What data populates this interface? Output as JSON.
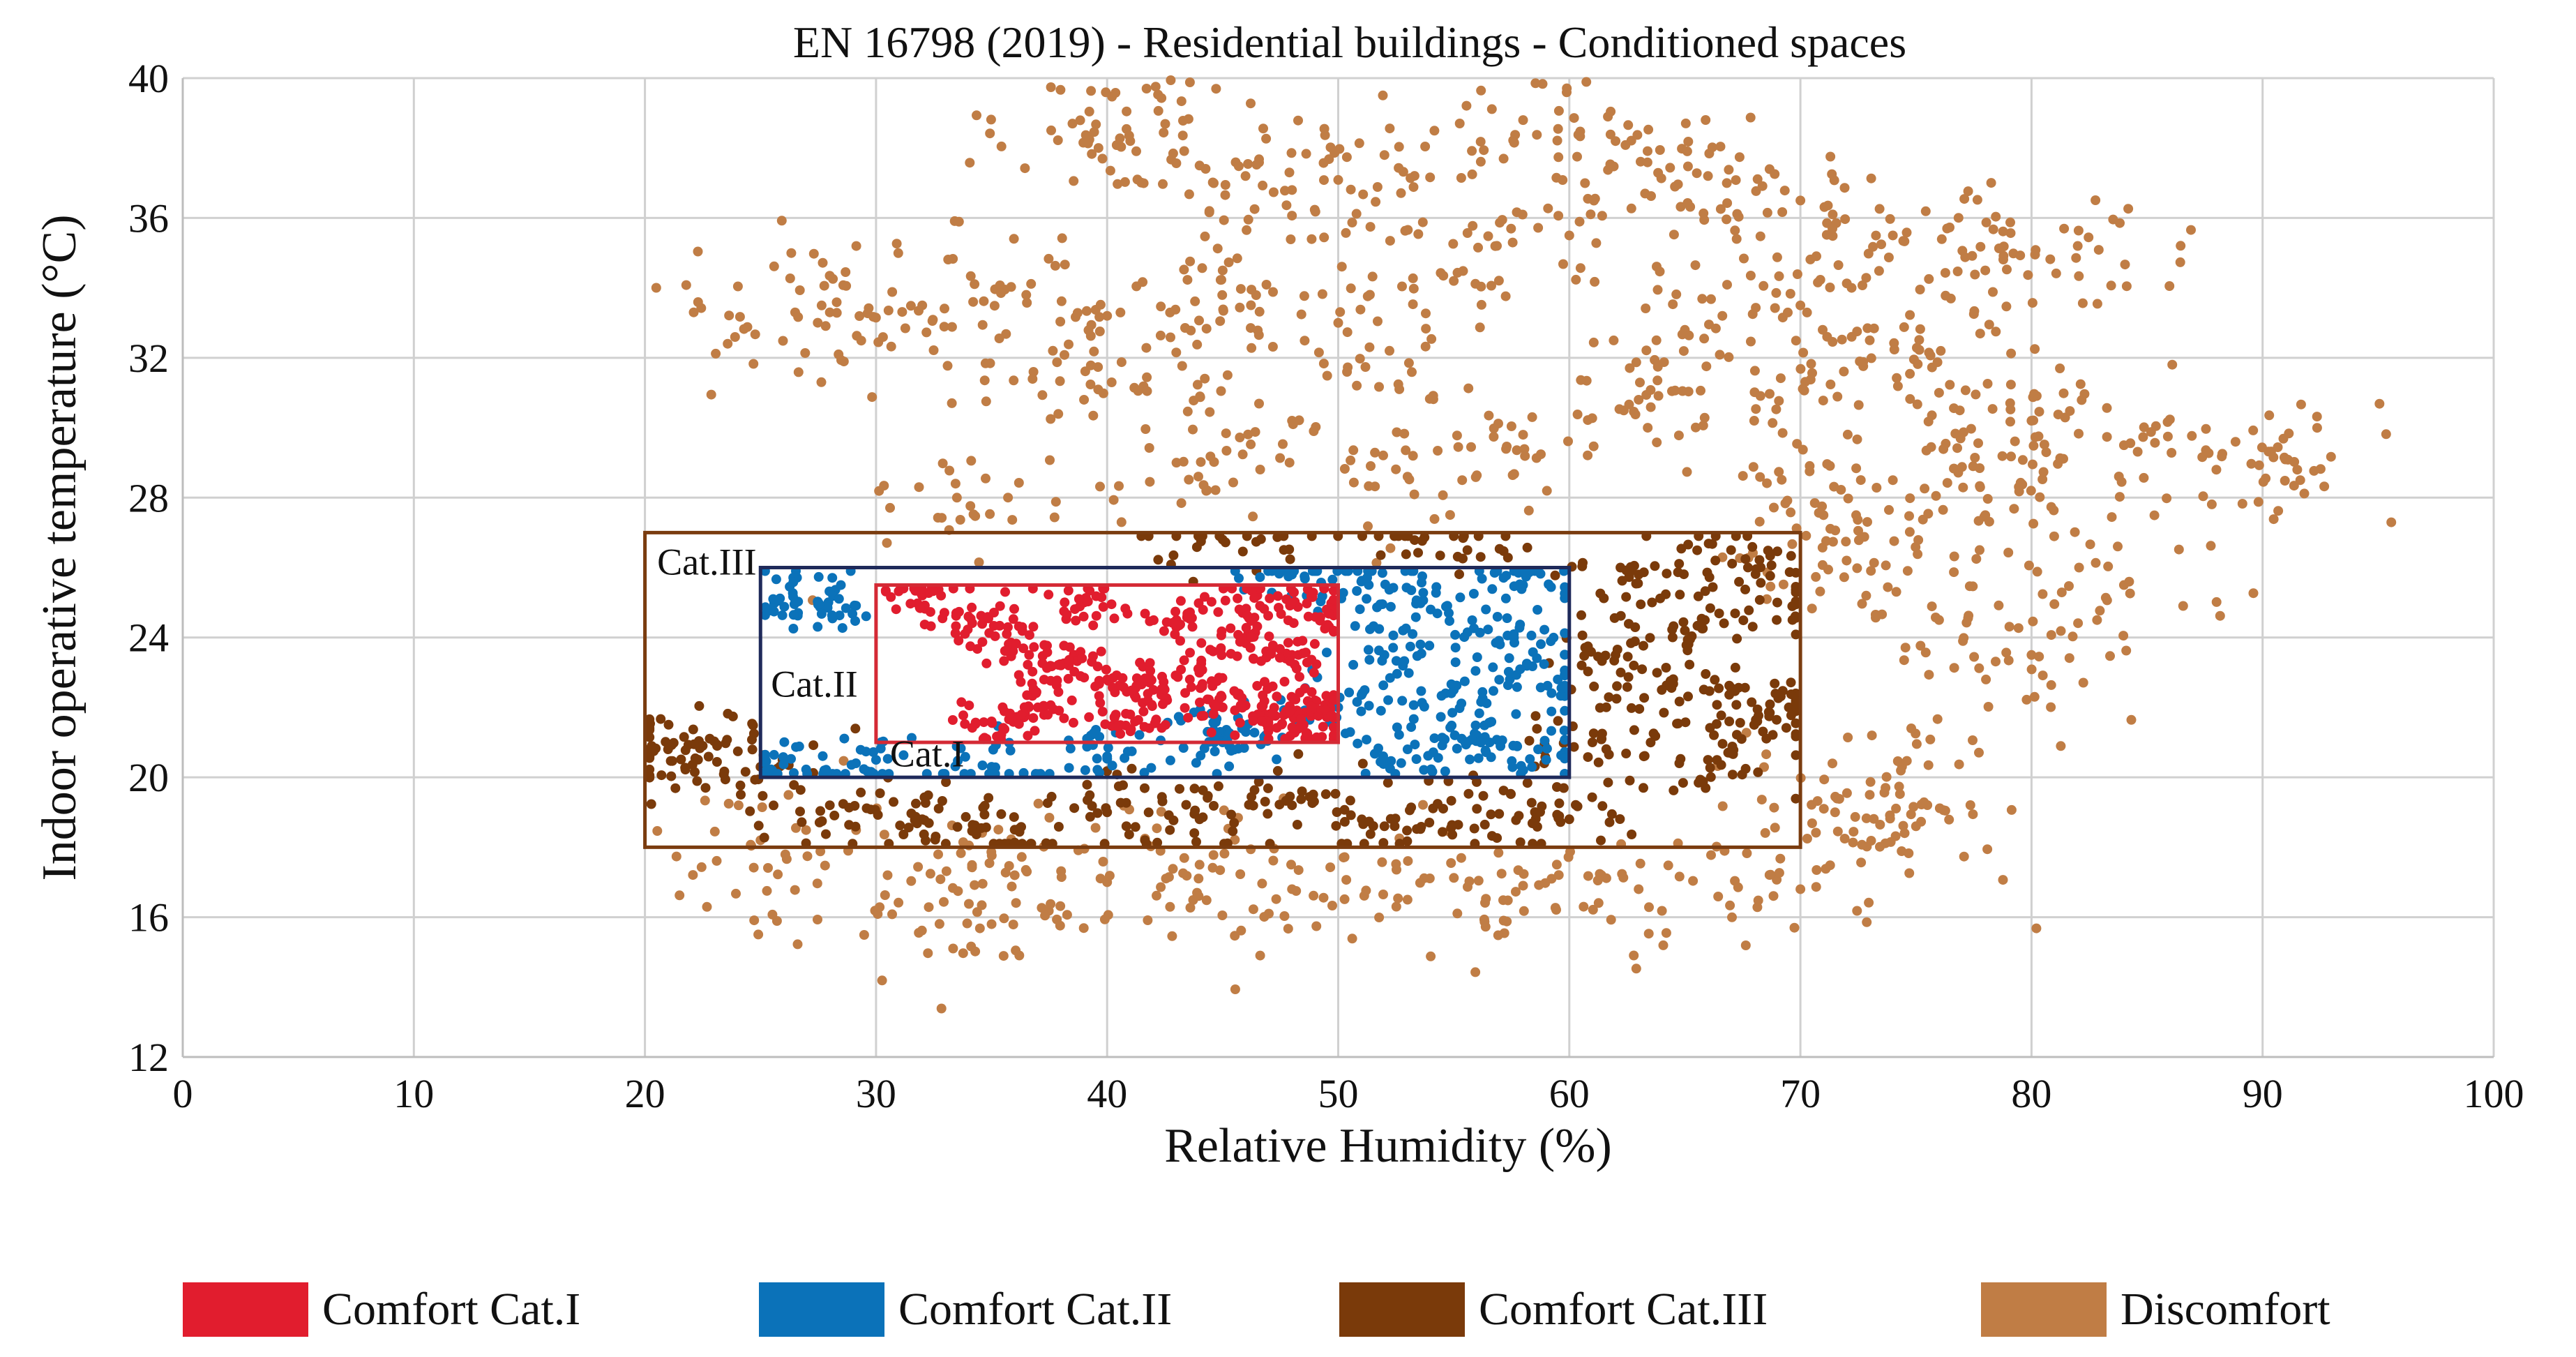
{
  "chart_data": {
    "type": "scatter",
    "title": "EN 16798 (2019) - Residential buildings - Conditioned spaces",
    "xlabel": "Relative Humidity (%)",
    "ylabel": "Indoor operative temperature (°C)",
    "xlim": [
      0,
      100
    ],
    "ylim": [
      12,
      40
    ],
    "xticks": [
      0,
      10,
      20,
      30,
      40,
      50,
      60,
      70,
      80,
      90,
      100
    ],
    "yticks": [
      12,
      16,
      20,
      24,
      28,
      32,
      36,
      40
    ],
    "xtick_labels": [
      "0",
      "10",
      "20",
      "30",
      "40",
      "50",
      "60",
      "70",
      "80",
      "90",
      "100"
    ],
    "ytick_labels": [
      "12",
      "16",
      "20",
      "24",
      "28",
      "32",
      "36",
      "40"
    ],
    "grid": true,
    "legend_position": "bottom",
    "comfort_zones": [
      {
        "label": "Cat.III",
        "rh_range": [
          20,
          70
        ],
        "t_range": [
          18,
          27
        ],
        "color": "#7a3c0f"
      },
      {
        "label": "Cat.II",
        "rh_range": [
          25,
          60
        ],
        "t_range": [
          20,
          26
        ],
        "color": "#1f2a5a"
      },
      {
        "label": "Cat.I",
        "rh_range": [
          30,
          50
        ],
        "t_range": [
          21,
          25.5
        ],
        "color": "#d42a35"
      }
    ],
    "series": [
      {
        "name": "Comfort Cat.I",
        "color": "#e11d2e",
        "points": [
          [
            32,
            25.2
          ],
          [
            34,
            24.6
          ],
          [
            36,
            23.8
          ],
          [
            38,
            23.2
          ],
          [
            40,
            22.8
          ],
          [
            42,
            22.5
          ],
          [
            44,
            23.0
          ],
          [
            45,
            22.0
          ],
          [
            46,
            24.0
          ],
          [
            47,
            21.8
          ],
          [
            48,
            23.5
          ],
          [
            49,
            22.2
          ],
          [
            49.5,
            24.8
          ],
          [
            48.5,
            21.5
          ],
          [
            43,
            24.5
          ],
          [
            39,
            25.0
          ],
          [
            37,
            22.0
          ],
          [
            35,
            21.6
          ],
          [
            41,
            21.8
          ],
          [
            46.5,
            25.2
          ]
        ]
      },
      {
        "name": "Comfort Cat.II",
        "color": "#0b72b9",
        "points": [
          [
            26.5,
            25.0
          ],
          [
            27.5,
            25.0
          ],
          [
            25.5,
            20.2
          ],
          [
            30,
            20.5
          ],
          [
            35,
            20.3
          ],
          [
            40,
            20.6
          ],
          [
            45,
            21.0
          ],
          [
            50,
            22.0
          ],
          [
            52,
            23.5
          ],
          [
            54,
            24.8
          ],
          [
            55,
            22.5
          ],
          [
            56,
            21.2
          ],
          [
            57,
            23.8
          ],
          [
            58,
            25.5
          ],
          [
            59,
            20.5
          ],
          [
            59.5,
            22.8
          ],
          [
            53,
            20.8
          ],
          [
            51,
            25.6
          ],
          [
            48,
            25.8
          ],
          [
            46,
            21.3
          ]
        ]
      },
      {
        "name": "Comfort Cat.III",
        "color": "#7a3a0a",
        "points": [
          [
            21,
            20.8
          ],
          [
            22.5,
            20.9
          ],
          [
            25,
            20.3
          ],
          [
            28,
            19.2
          ],
          [
            32,
            18.8
          ],
          [
            36,
            18.5
          ],
          [
            40,
            19.0
          ],
          [
            44,
            18.8
          ],
          [
            48,
            19.2
          ],
          [
            52,
            18.6
          ],
          [
            56,
            19.1
          ],
          [
            60,
            18.8
          ],
          [
            61,
            21.0
          ],
          [
            62,
            23.5
          ],
          [
            63,
            25.8
          ],
          [
            64,
            22.5
          ],
          [
            65,
            24.2
          ],
          [
            66,
            20.5
          ],
          [
            67,
            26.5
          ],
          [
            68,
            21.5
          ],
          [
            69,
            25.0
          ],
          [
            69.5,
            22.0
          ],
          [
            45,
            26.8
          ],
          [
            55,
            26.9
          ]
        ]
      },
      {
        "name": "Discomfort",
        "color": "#c07d45",
        "points": [
          [
            38.5,
            38.7
          ],
          [
            41,
            38.2
          ],
          [
            44,
            37.5
          ],
          [
            48,
            36.8
          ],
          [
            52,
            37.8
          ],
          [
            58,
            38.8
          ],
          [
            62,
            38.2
          ],
          [
            66,
            37.2
          ],
          [
            70,
            36.5
          ],
          [
            74,
            35.5
          ],
          [
            78,
            34.5
          ],
          [
            82,
            35.2
          ],
          [
            36.5,
            33.8
          ],
          [
            40,
            33.2
          ],
          [
            45,
            34.5
          ],
          [
            50,
            33.0
          ],
          [
            55,
            34.2
          ],
          [
            60,
            35.5
          ],
          [
            65,
            32.8
          ],
          [
            70,
            33.5
          ],
          [
            73,
            32.5
          ],
          [
            76,
            31.0
          ],
          [
            80,
            30.2
          ],
          [
            84,
            29.5
          ],
          [
            88,
            28.8
          ],
          [
            91.5,
            28.8
          ],
          [
            78,
            27.5
          ],
          [
            74,
            28.5
          ],
          [
            71,
            27.5
          ],
          [
            72,
            26.2
          ],
          [
            76,
            24.5
          ],
          [
            80,
            23.5
          ],
          [
            84,
            25.5
          ],
          [
            26.5,
            33.3
          ],
          [
            28,
            33.3
          ],
          [
            32,
            33.5
          ],
          [
            33.5,
            28.0
          ],
          [
            39,
            30.8
          ],
          [
            43,
            29.0
          ],
          [
            48,
            30.2
          ],
          [
            53,
            28.6
          ],
          [
            58,
            29.8
          ],
          [
            63,
            30.8
          ],
          [
            68,
            30.2
          ],
          [
            36,
            17.2
          ],
          [
            40,
            17.0
          ],
          [
            44,
            17.5
          ],
          [
            48,
            16.8
          ],
          [
            53,
            16.5
          ],
          [
            58,
            16.9
          ],
          [
            63,
            16.8
          ],
          [
            70,
            16.8
          ],
          [
            73,
            19.5
          ],
          [
            75,
            18.6
          ],
          [
            35,
            15.8
          ],
          [
            30.5,
            17.2
          ],
          [
            25,
            18.2
          ],
          [
            71.5,
            19.0
          ]
        ]
      }
    ],
    "legend": [
      {
        "label": "Comfort Cat.I",
        "color": "#e11d2e"
      },
      {
        "label": "Comfort Cat.II",
        "color": "#0b72b9"
      },
      {
        "label": "Comfort Cat.III",
        "color": "#7a3a0a"
      },
      {
        "label": "Discomfort",
        "color": "#c07d45"
      }
    ]
  }
}
